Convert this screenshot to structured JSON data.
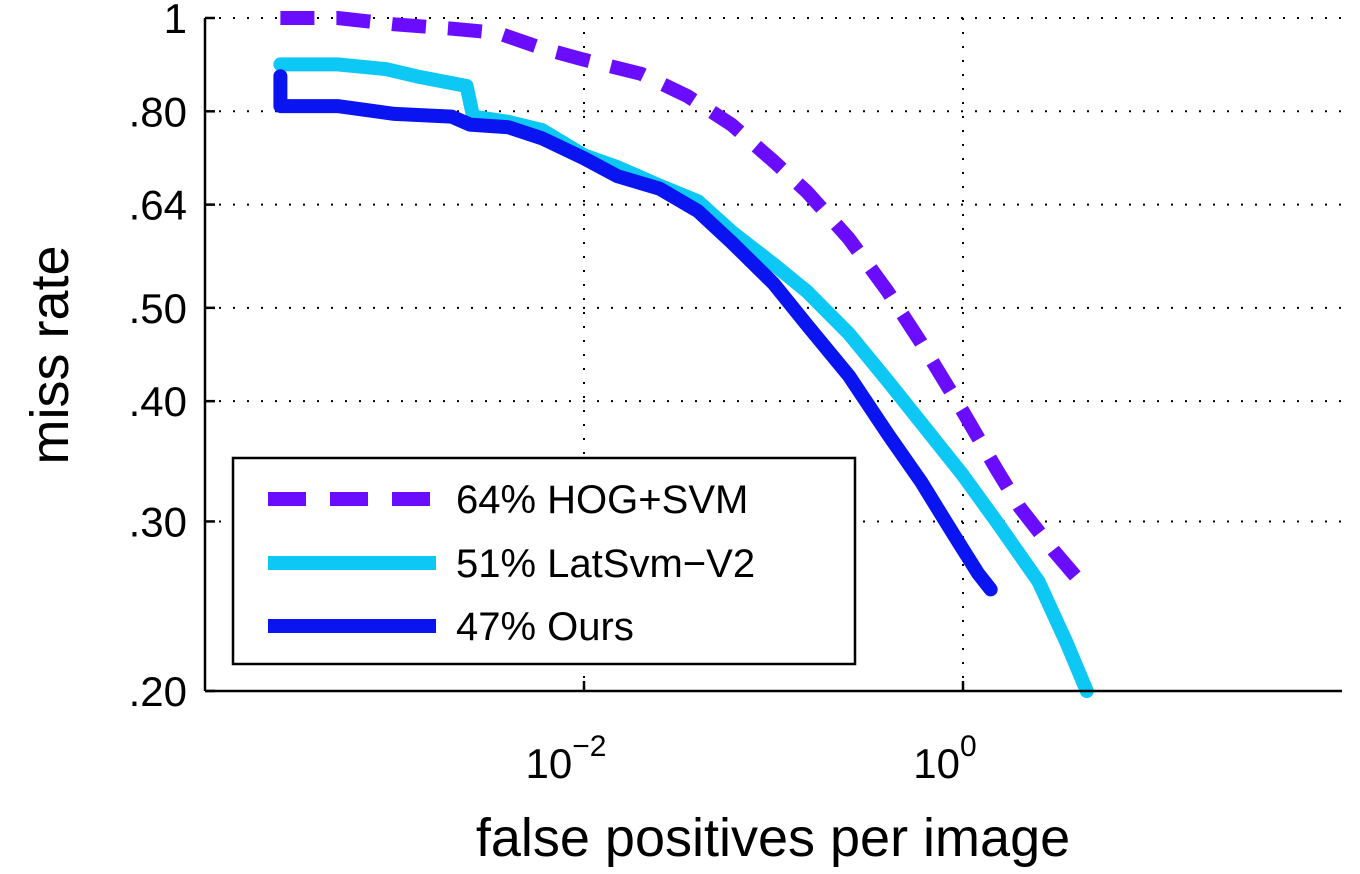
{
  "chart_data": {
    "type": "line",
    "title": "",
    "xlabel": "false positives per image",
    "ylabel": "miss rate",
    "xscale": "log",
    "yscale": "log",
    "xlim": [
      0.0001,
      100
    ],
    "ylim": [
      0.2,
      1
    ],
    "grid": true,
    "legend_position": "bottom-left",
    "xticks": [
      {
        "value": 0.01,
        "base": "10",
        "exp": "−2"
      },
      {
        "value": 1,
        "base": "10",
        "exp": "0"
      }
    ],
    "yticks": [
      {
        "value": 1,
        "label": "1"
      },
      {
        "value": 0.8,
        "label": ".80"
      },
      {
        "value": 0.64,
        "label": ".64"
      },
      {
        "value": 0.5,
        "label": ".50"
      },
      {
        "value": 0.4,
        "label": ".40"
      },
      {
        "value": 0.3,
        "label": ".30"
      },
      {
        "value": 0.2,
        "label": ".20"
      }
    ],
    "series": [
      {
        "name": "64% HOG+SVM",
        "color": "#6a0dff",
        "style": "dashed",
        "points": [
          [
            0.00025,
            1.0
          ],
          [
            0.0005,
            1.0
          ],
          [
            0.001,
            0.985
          ],
          [
            0.002,
            0.975
          ],
          [
            0.0035,
            0.965
          ],
          [
            0.006,
            0.93
          ],
          [
            0.01,
            0.905
          ],
          [
            0.02,
            0.875
          ],
          [
            0.035,
            0.83
          ],
          [
            0.06,
            0.775
          ],
          [
            0.1,
            0.71
          ],
          [
            0.15,
            0.66
          ],
          [
            0.25,
            0.59
          ],
          [
            0.4,
            0.52
          ],
          [
            0.6,
            0.46
          ],
          [
            1.0,
            0.39
          ],
          [
            1.5,
            0.34
          ],
          [
            2.0,
            0.31
          ],
          [
            3.0,
            0.28
          ],
          [
            4.5,
            0.255
          ]
        ]
      },
      {
        "name": "51% LatSvm−V2",
        "color": "#0dc8f5",
        "style": "solid",
        "points": [
          [
            0.00025,
            0.895
          ],
          [
            0.0005,
            0.895
          ],
          [
            0.0009,
            0.885
          ],
          [
            0.0013,
            0.87
          ],
          [
            0.0024,
            0.85
          ],
          [
            0.0026,
            0.79
          ],
          [
            0.004,
            0.78
          ],
          [
            0.006,
            0.765
          ],
          [
            0.01,
            0.72
          ],
          [
            0.015,
            0.7
          ],
          [
            0.025,
            0.67
          ],
          [
            0.04,
            0.645
          ],
          [
            0.06,
            0.6
          ],
          [
            0.1,
            0.555
          ],
          [
            0.15,
            0.52
          ],
          [
            0.25,
            0.47
          ],
          [
            0.4,
            0.42
          ],
          [
            0.6,
            0.38
          ],
          [
            1.0,
            0.335
          ],
          [
            1.5,
            0.3
          ],
          [
            2.5,
            0.26
          ],
          [
            3.5,
            0.225
          ],
          [
            4.5,
            0.2
          ]
        ]
      },
      {
        "name": "47% Ours",
        "color": "#0a14f0",
        "style": "solid",
        "points": [
          [
            0.00025,
            0.87
          ],
          [
            0.00025,
            0.81
          ],
          [
            0.0005,
            0.81
          ],
          [
            0.001,
            0.795
          ],
          [
            0.002,
            0.79
          ],
          [
            0.0025,
            0.775
          ],
          [
            0.004,
            0.77
          ],
          [
            0.006,
            0.75
          ],
          [
            0.01,
            0.715
          ],
          [
            0.015,
            0.685
          ],
          [
            0.025,
            0.665
          ],
          [
            0.04,
            0.63
          ],
          [
            0.06,
            0.585
          ],
          [
            0.1,
            0.53
          ],
          [
            0.15,
            0.48
          ],
          [
            0.25,
            0.425
          ],
          [
            0.4,
            0.37
          ],
          [
            0.6,
            0.33
          ],
          [
            0.9,
            0.29
          ],
          [
            1.2,
            0.265
          ],
          [
            1.4,
            0.255
          ]
        ]
      }
    ]
  }
}
